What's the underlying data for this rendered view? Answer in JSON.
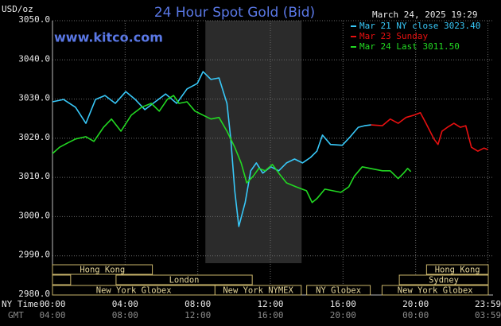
{
  "chart_data": {
    "type": "line",
    "title": "24 Hour Spot Gold (Bid)",
    "site": "www.kitco.com",
    "timestamp": "March 24, 2025 19:29",
    "y_label": "USD/oz",
    "x_label": "NY Time",
    "x2_label": "GMT",
    "legend": "upper right",
    "grid": true,
    "ylim": [
      2980,
      3050
    ],
    "yticks": [
      {
        "value": 2980,
        "label": "2980.0"
      },
      {
        "value": 2990,
        "label": "2990.0"
      },
      {
        "value": 3000,
        "label": "3000.0"
      },
      {
        "value": 3010,
        "label": "3010.0"
      },
      {
        "value": 3020,
        "label": "3020.0"
      },
      {
        "value": 3030,
        "label": "3030.0"
      },
      {
        "value": 3040,
        "label": "3040.0"
      },
      {
        "value": 3050,
        "label": "3050.0"
      }
    ],
    "xlim": [
      0,
      24
    ],
    "xticks": [
      {
        "value": 0,
        "label": "00:00"
      },
      {
        "value": 4,
        "label": "04:00"
      },
      {
        "value": 8,
        "label": "08:00"
      },
      {
        "value": 12,
        "label": "12:00"
      },
      {
        "value": 16,
        "label": "16:00"
      },
      {
        "value": 20,
        "label": "20:00"
      },
      {
        "value": 23.98,
        "label": "23:59"
      }
    ],
    "x2tick_labels": [
      "04:00",
      "08:00",
      "12:00",
      "16:00",
      "20:00",
      "00:00",
      "03:59"
    ],
    "shaded": [
      8.42,
      13.72
    ],
    "sessions": [
      {
        "label": "Hong Kong",
        "start": 0,
        "end": 5.5
      },
      {
        "label": null,
        "start": 0,
        "end": 1.0
      },
      {
        "label": "London",
        "start": 3.5,
        "end": 11.0
      },
      {
        "label": "New York Globex",
        "start": 0,
        "end": 8.95
      },
      {
        "label": "New York NYMEX",
        "start": 8.95,
        "end": 13.7
      },
      {
        "label": "NY Globex",
        "start": 14.0,
        "end": 17.5
      },
      {
        "label": "Hong Kong",
        "start": 20.6,
        "end": 24
      },
      {
        "label": "Sydney",
        "start": 19.1,
        "end": 24
      },
      {
        "label": "New York Globex",
        "start": 18.15,
        "end": 24
      }
    ],
    "series": [
      {
        "name": "Mar 21 NY close 3023.40",
        "color": "#38c8f8",
        "x": [
          0,
          0.61,
          1.27,
          1.84,
          2.37,
          2.89,
          3.46,
          4.04,
          4.56,
          5.09,
          5.66,
          6.23,
          6.84,
          7.41,
          7.98,
          8.29,
          8.73,
          9.17,
          9.61,
          9.82,
          10.04,
          10.26,
          10.61,
          10.92,
          11.23,
          11.58,
          12.02,
          12.46,
          12.89,
          13.33,
          13.77,
          14.21,
          14.56,
          14.87,
          15.31,
          15.96,
          16.4,
          16.84,
          17.19,
          17.54
        ],
        "values": [
          3029.3,
          3029.9,
          3027.9,
          3023.8,
          3029.9,
          3030.9,
          3028.9,
          3031.9,
          3029.9,
          3027.3,
          3029.3,
          3031.3,
          3028.9,
          3032.6,
          3034.0,
          3037.0,
          3035.0,
          3035.4,
          3028.9,
          3019.8,
          3006.6,
          2997.5,
          3003.6,
          3011.7,
          3013.7,
          3011.1,
          3012.7,
          3011.7,
          3013.7,
          3014.7,
          3013.7,
          3015.1,
          3016.7,
          3020.8,
          3018.4,
          3018.2,
          3020.4,
          3022.8,
          3023.2,
          3023.4
        ]
      },
      {
        "name": "Mar 23 Sunday",
        "color": "#e81010",
        "x": [
          17.54,
          18.16,
          18.6,
          19.04,
          19.47,
          19.91,
          20.26,
          20.57,
          21.01,
          21.23,
          21.45,
          21.75,
          22.11,
          22.46,
          22.76,
          23.07,
          23.42,
          23.77,
          23.98
        ],
        "values": [
          3023.4,
          3023.2,
          3024.9,
          3023.8,
          3025.3,
          3025.9,
          3026.5,
          3023.8,
          3019.8,
          3018.4,
          3021.8,
          3022.8,
          3023.8,
          3022.8,
          3023.2,
          3017.7,
          3016.7,
          3017.5,
          3017.1
        ]
      },
      {
        "name": "Mar 24 Last 3011.50",
        "color": "#22d822",
        "x": [
          0,
          0.39,
          0.83,
          1.27,
          1.84,
          2.28,
          2.81,
          3.25,
          3.77,
          4.34,
          4.91,
          5.44,
          5.88,
          6.32,
          6.67,
          6.97,
          7.41,
          7.85,
          8.29,
          8.73,
          9.17,
          9.61,
          10.04,
          10.39,
          10.7,
          11.05,
          11.36,
          11.71,
          12.11,
          12.46,
          12.89,
          13.42,
          13.99,
          14.3,
          14.56,
          15.0,
          15.44,
          15.88,
          16.32,
          16.62,
          17.06,
          17.5,
          18.16,
          18.6,
          19.04,
          19.34,
          19.56,
          19.74
        ],
        "values": [
          3016.1,
          3017.7,
          3018.8,
          3019.8,
          3020.4,
          3019.2,
          3022.8,
          3024.9,
          3021.8,
          3025.9,
          3027.9,
          3028.9,
          3026.9,
          3029.9,
          3030.9,
          3028.9,
          3029.3,
          3026.9,
          3025.9,
          3024.9,
          3025.3,
          3021.8,
          3017.7,
          3013.7,
          3008.6,
          3010.3,
          3012.3,
          3011.7,
          3013.3,
          3011.1,
          3008.6,
          3007.6,
          3006.6,
          3003.6,
          3004.6,
          3007.0,
          3006.6,
          3006.2,
          3007.6,
          3010.3,
          3012.7,
          3012.3,
          3011.7,
          3011.7,
          3009.7,
          3011.1,
          3012.3,
          3011.5
        ]
      }
    ]
  }
}
